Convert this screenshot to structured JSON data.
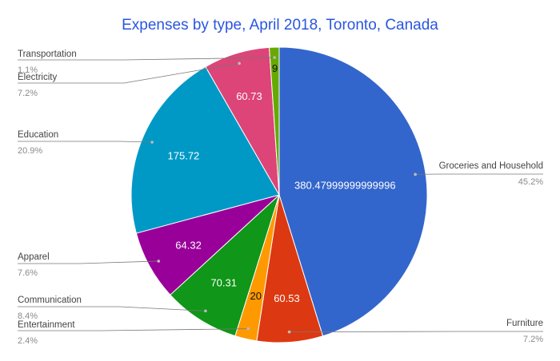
{
  "chart_data": {
    "type": "pie",
    "title": "Expenses by type, April 2018, Toronto, Canada",
    "legend": "none",
    "slices": [
      {
        "label": "Groceries and Household",
        "value": 380.47999999999996,
        "value_label": "380.47999999999996",
        "percent": "45.2%",
        "color": "#3366cc"
      },
      {
        "label": "Furniture",
        "value": 60.53,
        "value_label": "60.53",
        "percent": "7.2%",
        "color": "#dc3912"
      },
      {
        "label": "Entertainment",
        "value": 20,
        "value_label": "20",
        "percent": "2.4%",
        "color": "#ff9900"
      },
      {
        "label": "Communication",
        "value": 70.31,
        "value_label": "70.31",
        "percent": "8.4%",
        "color": "#109618"
      },
      {
        "label": "Apparel",
        "value": 64.32,
        "value_label": "64.32",
        "percent": "7.6%",
        "color": "#990099"
      },
      {
        "label": "Education",
        "value": 175.72,
        "value_label": "175.72",
        "percent": "20.9%",
        "color": "#0099c6"
      },
      {
        "label": "Electricity",
        "value": 60.73,
        "value_label": "60.73",
        "percent": "7.2%",
        "color": "#dd4477"
      },
      {
        "label": "Transportation",
        "value": 9,
        "value_label": "9",
        "percent": "1.1%",
        "color": "#66aa00"
      }
    ]
  }
}
